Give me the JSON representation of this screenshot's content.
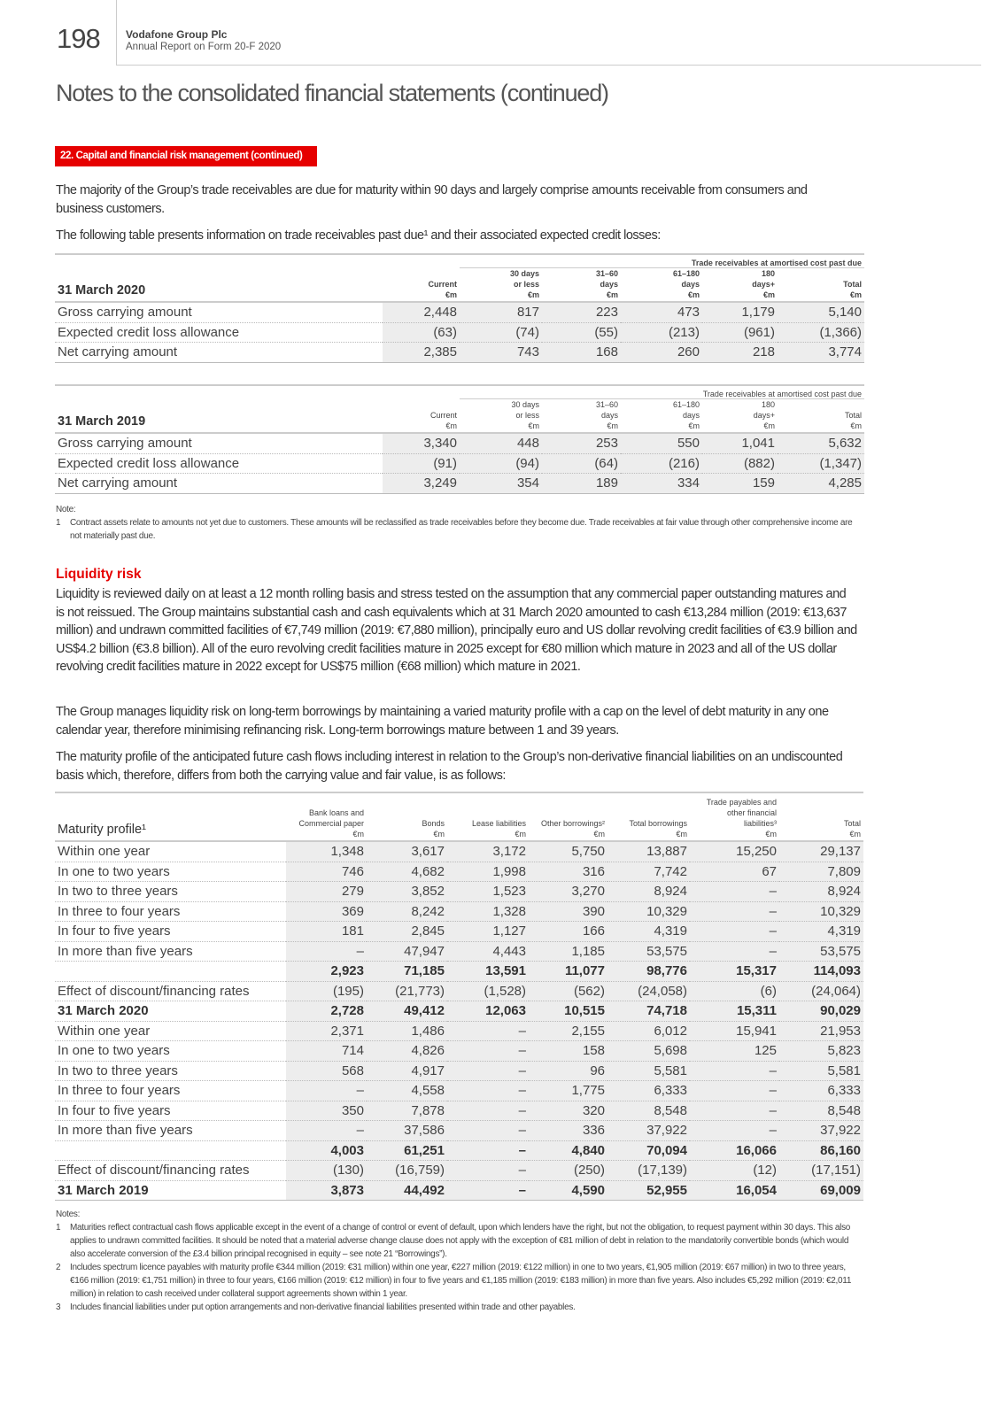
{
  "header": {
    "page_number": "198",
    "company": "Vodafone Group Plc",
    "report": "Annual Report on Form 20-F 2020"
  },
  "title": "Notes to the consolidated financial statements (continued)",
  "section_badge": "22. Capital and financial risk management (continued)",
  "intro": [
    "The majority of the Group’s trade receivables are due for maturity within 90 days and largely comprise amounts receivable from consumers and business customers.",
    "The following table presents information on trade receivables past due¹ and their associated expected credit losses:"
  ],
  "receivables_tables": [
    {
      "title": "31 March 2020",
      "group_header": "Trade receivables at amortised cost past due",
      "columns": [
        [
          "Current",
          "€m"
        ],
        [
          "30 days",
          "or less",
          "€m"
        ],
        [
          "31–60",
          "days",
          "€m"
        ],
        [
          "61–180",
          "days",
          "€m"
        ],
        [
          "180",
          "days+",
          "€m"
        ],
        [
          "Total",
          "€m"
        ]
      ],
      "rows": [
        {
          "label": "Gross carrying amount",
          "values": [
            "2,448",
            "817",
            "223",
            "473",
            "1,179",
            "5,140"
          ]
        },
        {
          "label": "Expected credit loss allowance",
          "values": [
            "(63)",
            "(74)",
            "(55)",
            "(213)",
            "(961)",
            "(1,366)"
          ]
        },
        {
          "label": "Net carrying amount",
          "values": [
            "2,385",
            "743",
            "168",
            "260",
            "218",
            "3,774"
          ]
        }
      ]
    },
    {
      "title": "31 March 2019",
      "group_header": "Trade receivables at amortised cost past due",
      "columns": [
        [
          "Current",
          "€m"
        ],
        [
          "30 days",
          "or less",
          "€m"
        ],
        [
          "31–60",
          "days",
          "€m"
        ],
        [
          "61–180",
          "days",
          "€m"
        ],
        [
          "180",
          "days+",
          "€m"
        ],
        [
          "Total",
          "€m"
        ]
      ],
      "rows": [
        {
          "label": "Gross carrying amount",
          "values": [
            "3,340",
            "448",
            "253",
            "550",
            "1,041",
            "5,632"
          ]
        },
        {
          "label": "Expected credit loss allowance",
          "values": [
            "(91)",
            "(94)",
            "(64)",
            "(216)",
            "(882)",
            "(1,347)"
          ]
        },
        {
          "label": "Net carrying amount",
          "values": [
            "3,249",
            "354",
            "189",
            "334",
            "159",
            "4,285"
          ]
        }
      ]
    }
  ],
  "receivables_note": {
    "heading": "Note:",
    "items": [
      {
        "num": "1",
        "text": "Contract assets relate to amounts not yet due to customers. These amounts will be reclassified as trade receivables before they become due. Trade receivables at fair value through other comprehensive income are not materially past due."
      }
    ]
  },
  "liquidity": {
    "heading": "Liquidity risk",
    "paragraphs": [
      "Liquidity is reviewed daily on at least a 12 month rolling basis and stress tested on the assumption that any commercial paper outstanding matures and is not reissued. The Group maintains substantial cash and cash equivalents which at 31 March 2020 amounted to cash €13,284 million (2019: €13,637 million) and undrawn committed facilities of €7,749 million (2019: €7,880 million), principally euro and US dollar revolving credit facilities of €3.9 billion and US$4.2 billion (€3.8 billion). All of the euro revolving credit facilities mature in 2025 except for €80 million which mature in 2023 and all of the US dollar revolving credit facilities mature in 2022 except for US$75 million (€68 million) which mature in 2021.",
      "The Group manages liquidity risk on long-term borrowings by maintaining a varied maturity profile with a cap on the level of debt maturity in any one calendar year, therefore minimising refinancing risk. Long-term borrowings mature between 1 and 39 years.",
      "The maturity profile of the anticipated future cash flows including interest in relation to the Group’s non-derivative financial liabilities on an undiscounted basis which, therefore, differs from both the carrying value and fair value, is as follows:"
    ]
  },
  "maturity_table": {
    "title": "Maturity profile¹",
    "columns": [
      [
        "Bank loans and",
        "Commercial paper",
        "€m"
      ],
      [
        "Bonds",
        "€m"
      ],
      [
        "Lease liabilities",
        "€m"
      ],
      [
        "Other borrowings²",
        "€m"
      ],
      [
        "Total borrowings",
        "€m"
      ],
      [
        "Trade payables and",
        "other financial",
        "liabilities³",
        "€m"
      ],
      [
        "Total",
        "€m"
      ]
    ],
    "rows": [
      {
        "label": "Within one year",
        "values": [
          "1,348",
          "3,617",
          "3,172",
          "5,750",
          "13,887",
          "15,250",
          "29,137"
        ]
      },
      {
        "label": "In one to two years",
        "values": [
          "746",
          "4,682",
          "1,998",
          "316",
          "7,742",
          "67",
          "7,809"
        ]
      },
      {
        "label": "In two to three years",
        "values": [
          "279",
          "3,852",
          "1,523",
          "3,270",
          "8,924",
          "–",
          "8,924"
        ]
      },
      {
        "label": "In three to four years",
        "values": [
          "369",
          "8,242",
          "1,328",
          "390",
          "10,329",
          "–",
          "10,329"
        ]
      },
      {
        "label": "In four to five years",
        "values": [
          "181",
          "2,845",
          "1,127",
          "166",
          "4,319",
          "–",
          "4,319"
        ]
      },
      {
        "label": "In more than five years",
        "values": [
          "–",
          "47,947",
          "4,443",
          "1,185",
          "53,575",
          "–",
          "53,575"
        ]
      },
      {
        "label": "",
        "bold": true,
        "values": [
          "2,923",
          "71,185",
          "13,591",
          "11,077",
          "98,776",
          "15,317",
          "114,093"
        ]
      },
      {
        "label": "Effect of discount/financing rates",
        "values": [
          "(195)",
          "(21,773)",
          "(1,528)",
          "(562)",
          "(24,058)",
          "(6)",
          "(24,064)"
        ]
      },
      {
        "label": "31 March 2020",
        "bold": true,
        "values": [
          "2,728",
          "49,412",
          "12,063",
          "10,515",
          "74,718",
          "15,311",
          "90,029"
        ]
      },
      {
        "label": "Within one year",
        "values": [
          "2,371",
          "1,486",
          "–",
          "2,155",
          "6,012",
          "15,941",
          "21,953"
        ]
      },
      {
        "label": "In one to two years",
        "values": [
          "714",
          "4,826",
          "–",
          "158",
          "5,698",
          "125",
          "5,823"
        ]
      },
      {
        "label": "In two to three years",
        "values": [
          "568",
          "4,917",
          "–",
          "96",
          "5,581",
          "–",
          "5,581"
        ]
      },
      {
        "label": "In three to four years",
        "values": [
          "–",
          "4,558",
          "–",
          "1,775",
          "6,333",
          "–",
          "6,333"
        ]
      },
      {
        "label": "In four to five years",
        "values": [
          "350",
          "7,878",
          "–",
          "320",
          "8,548",
          "–",
          "8,548"
        ]
      },
      {
        "label": "In more than five years",
        "values": [
          "–",
          "37,586",
          "–",
          "336",
          "37,922",
          "–",
          "37,922"
        ]
      },
      {
        "label": "",
        "bold": true,
        "values": [
          "4,003",
          "61,251",
          "–",
          "4,840",
          "70,094",
          "16,066",
          "86,160"
        ]
      },
      {
        "label": "Effect of discount/financing rates",
        "values": [
          "(130)",
          "(16,759)",
          "–",
          "(250)",
          "(17,139)",
          "(12)",
          "(17,151)"
        ]
      },
      {
        "label": "31 March 2019",
        "bold": true,
        "values": [
          "3,873",
          "44,492",
          "–",
          "4,590",
          "52,955",
          "16,054",
          "69,009"
        ]
      }
    ]
  },
  "maturity_notes": {
    "heading": "Notes:",
    "items": [
      {
        "num": "1",
        "text": "Maturities reflect contractual cash flows applicable except in the event of a change of control or event of default, upon which lenders have the right, but not the obligation, to request payment within 30 days. This also applies to undrawn committed facilities. It should be noted that a material adverse change clause does not apply with the exception of €81 million of debt in relation to the mandatorily convertible bonds (which would also accelerate conversion of the £3.4 billion principal recognised in equity – see note 21 “Borrowings”)."
      },
      {
        "num": "2",
        "text": "Includes spectrum licence payables with maturity profile €344 million (2019: €31 million) within one year, €227 million (2019: €122 million) in one to two years, €1,905 million (2019: €67 million) in two to three years, €166 million (2019: €1,751 million) in three to four years, €166 million (2019: €12 million) in four to five years and €1,185 million (2019: €183 million) in more than five years. Also includes €5,292 million (2019: €2,011 million) in relation to cash received under collateral support agreements shown within 1 year."
      },
      {
        "num": "3",
        "text": "Includes financial liabilities under put option arrangements and non-derivative financial liabilities presented within trade and other payables."
      }
    ]
  },
  "colors": {
    "accent": "#e60000",
    "shading": "#ededed"
  }
}
